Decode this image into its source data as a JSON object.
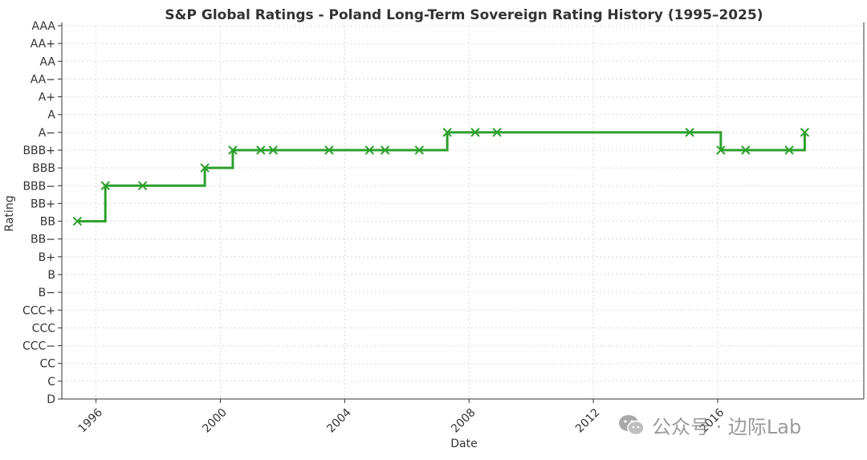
{
  "chart_data": {
    "type": "line",
    "title": "S&P Global Ratings - Poland Long-Term Sovereign Rating History (1995–2025)",
    "xlabel": "Date",
    "ylabel": "Rating",
    "rating_scale": [
      "D",
      "C",
      "CC",
      "CCC−",
      "CCC",
      "CCC+",
      "B−",
      "B",
      "B+",
      "BB−",
      "BB",
      "BB+",
      "BBB−",
      "BBB",
      "BBB+",
      "A−",
      "A",
      "A+",
      "AA−",
      "AA",
      "AA+",
      "AAA"
    ],
    "x_ticks": [
      "1996",
      "2000",
      "2004",
      "2008",
      "2012",
      "2016"
    ],
    "x_tick_values": [
      1996,
      2000,
      2004,
      2008,
      2012,
      2016
    ],
    "xlim": [
      1994.9,
      2020.7
    ],
    "grid": true,
    "step": "post",
    "series": [
      {
        "color": "#2ca02c",
        "marker": "x",
        "points": [
          {
            "x": 1995.4,
            "y": "BB"
          },
          {
            "x": 1996.3,
            "y": "BBB−"
          },
          {
            "x": 1997.5,
            "y": "BBB−"
          },
          {
            "x": 1999.5,
            "y": "BBB"
          },
          {
            "x": 2000.4,
            "y": "BBB+"
          },
          {
            "x": 2001.3,
            "y": "BBB+"
          },
          {
            "x": 2001.7,
            "y": "BBB+"
          },
          {
            "x": 2003.5,
            "y": "BBB+"
          },
          {
            "x": 2004.8,
            "y": "BBB+"
          },
          {
            "x": 2005.3,
            "y": "BBB+"
          },
          {
            "x": 2006.4,
            "y": "BBB+"
          },
          {
            "x": 2007.3,
            "y": "A−"
          },
          {
            "x": 2008.2,
            "y": "A−"
          },
          {
            "x": 2008.9,
            "y": "A−"
          },
          {
            "x": 2015.1,
            "y": "A−"
          },
          {
            "x": 2016.1,
            "y": "BBB+"
          },
          {
            "x": 2016.9,
            "y": "BBB+"
          },
          {
            "x": 2018.3,
            "y": "BBB+"
          },
          {
            "x": 2018.8,
            "y": "A−"
          }
        ]
      }
    ]
  },
  "watermark": {
    "text": "公众号 · 边际Lab",
    "icon": "wechat-icon"
  }
}
